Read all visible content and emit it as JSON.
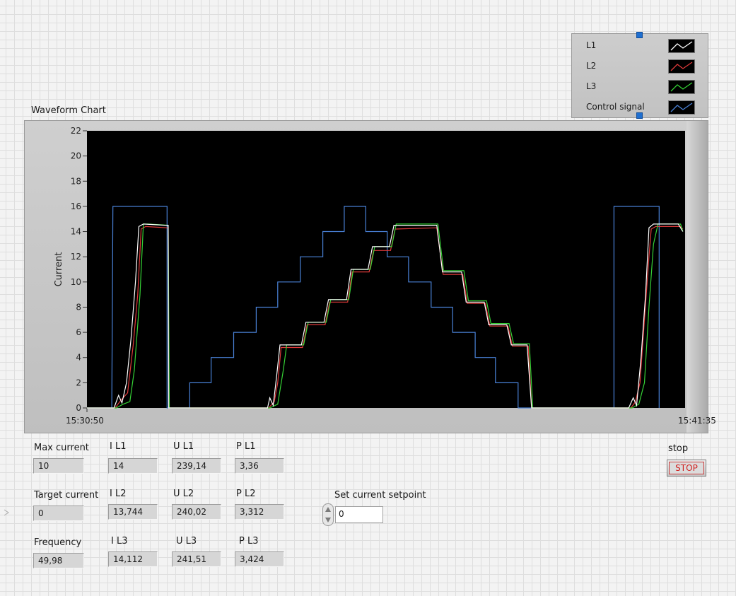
{
  "chart": {
    "title": "Waveform Chart",
    "ylabel": "Current",
    "x_start": "15:30:50",
    "x_end": "15:41:35",
    "y_ticks": [
      "0",
      "2",
      "4",
      "6",
      "8",
      "10",
      "12",
      "14",
      "16",
      "18",
      "20",
      "22"
    ]
  },
  "chart_data": {
    "type": "line",
    "title": "Waveform Chart",
    "xlabel": "",
    "ylabel": "Current",
    "xlim": [
      "15:30:50",
      "15:41:35"
    ],
    "ylim": [
      0,
      22
    ],
    "x_tick_labels": [
      "15:30:50",
      "15:41:35"
    ],
    "y_tick_labels": [
      "0",
      "2",
      "4",
      "6",
      "8",
      "10",
      "12",
      "14",
      "16",
      "18",
      "20",
      "22"
    ],
    "grid": false,
    "legend_position": "top-right",
    "series": [
      {
        "name": "L1",
        "color": "#ffffff",
        "points": [
          [
            0,
            0
          ],
          [
            1.2,
            0
          ],
          [
            1.4,
            1.0
          ],
          [
            1.55,
            0.4
          ],
          [
            1.75,
            2.0
          ],
          [
            1.95,
            5.5
          ],
          [
            2.15,
            10
          ],
          [
            2.3,
            14.4
          ],
          [
            2.5,
            14.6
          ],
          [
            3.45,
            14.5
          ],
          [
            3.6,
            14.5
          ],
          [
            3.62,
            0
          ],
          [
            8.0,
            0
          ],
          [
            8.1,
            0.8
          ],
          [
            8.25,
            0.2
          ],
          [
            8.4,
            2.5
          ],
          [
            8.55,
            5
          ],
          [
            9.5,
            5
          ],
          [
            9.7,
            6.8
          ],
          [
            10.5,
            6.8
          ],
          [
            10.7,
            8.6
          ],
          [
            11.5,
            8.6
          ],
          [
            11.7,
            11
          ],
          [
            12.45,
            11
          ],
          [
            12.65,
            12.8
          ],
          [
            13.4,
            12.8
          ],
          [
            13.6,
            14.5
          ],
          [
            15.5,
            14.5
          ],
          [
            15.75,
            10.8
          ],
          [
            16.6,
            10.8
          ],
          [
            16.8,
            8.4
          ],
          [
            17.6,
            8.4
          ],
          [
            17.8,
            6.6
          ],
          [
            18.6,
            6.6
          ],
          [
            18.8,
            5
          ],
          [
            19.5,
            5
          ],
          [
            19.7,
            0
          ],
          [
            24.0,
            0
          ],
          [
            24.2,
            0.8
          ],
          [
            24.35,
            0.2
          ],
          [
            24.55,
            4
          ],
          [
            24.75,
            9
          ],
          [
            24.9,
            14.3
          ],
          [
            25.1,
            14.6
          ],
          [
            26.2,
            14.6
          ],
          [
            26.4,
            14
          ]
        ]
      },
      {
        "name": "L2",
        "color": "#e03a3a",
        "points": [
          [
            0,
            0
          ],
          [
            1.25,
            0
          ],
          [
            1.5,
            0.6
          ],
          [
            1.8,
            1.2
          ],
          [
            2.05,
            5
          ],
          [
            2.25,
            9
          ],
          [
            2.4,
            14.2
          ],
          [
            2.6,
            14.4
          ],
          [
            3.55,
            14.3
          ],
          [
            3.6,
            14.3
          ],
          [
            3.63,
            0
          ],
          [
            8.05,
            0
          ],
          [
            8.3,
            0.5
          ],
          [
            8.45,
            2
          ],
          [
            8.6,
            4.8
          ],
          [
            9.55,
            4.8
          ],
          [
            9.75,
            6.6
          ],
          [
            10.55,
            6.6
          ],
          [
            10.75,
            8.4
          ],
          [
            11.55,
            8.4
          ],
          [
            11.75,
            10.8
          ],
          [
            12.5,
            10.8
          ],
          [
            12.7,
            12.5
          ],
          [
            13.45,
            12.5
          ],
          [
            13.65,
            14.2
          ],
          [
            15.5,
            14.3
          ],
          [
            15.78,
            10.6
          ],
          [
            16.65,
            10.6
          ],
          [
            16.85,
            8.3
          ],
          [
            17.65,
            8.3
          ],
          [
            17.85,
            6.5
          ],
          [
            18.65,
            6.5
          ],
          [
            18.85,
            4.9
          ],
          [
            19.55,
            4.9
          ],
          [
            19.7,
            0
          ],
          [
            24.1,
            0
          ],
          [
            24.3,
            0.5
          ],
          [
            24.5,
            2
          ],
          [
            24.7,
            7
          ],
          [
            24.9,
            12
          ],
          [
            25.0,
            14.2
          ],
          [
            25.2,
            14.4
          ],
          [
            26.3,
            14.4
          ],
          [
            26.4,
            14.2
          ]
        ]
      },
      {
        "name": "L3",
        "color": "#35d135",
        "points": [
          [
            0,
            0
          ],
          [
            1.3,
            0
          ],
          [
            1.6,
            0.3
          ],
          [
            1.9,
            0.5
          ],
          [
            2.1,
            3
          ],
          [
            2.35,
            9
          ],
          [
            2.5,
            14.6
          ],
          [
            2.7,
            14.6
          ],
          [
            3.6,
            14.5
          ],
          [
            3.65,
            0
          ],
          [
            8.1,
            0
          ],
          [
            8.45,
            0.3
          ],
          [
            8.7,
            3
          ],
          [
            8.85,
            5
          ],
          [
            9.6,
            5
          ],
          [
            9.8,
            6.8
          ],
          [
            10.6,
            6.8
          ],
          [
            10.8,
            8.6
          ],
          [
            11.6,
            8.6
          ],
          [
            11.8,
            11
          ],
          [
            12.55,
            11
          ],
          [
            12.75,
            12.8
          ],
          [
            13.5,
            12.8
          ],
          [
            13.7,
            14.6
          ],
          [
            15.55,
            14.6
          ],
          [
            15.8,
            10.9
          ],
          [
            16.7,
            10.9
          ],
          [
            16.9,
            8.5
          ],
          [
            17.7,
            8.5
          ],
          [
            17.9,
            6.7
          ],
          [
            18.7,
            6.7
          ],
          [
            18.9,
            5.1
          ],
          [
            19.6,
            5.1
          ],
          [
            19.75,
            0
          ],
          [
            24.15,
            0
          ],
          [
            24.45,
            0.3
          ],
          [
            24.7,
            2
          ],
          [
            24.9,
            8
          ],
          [
            25.1,
            13
          ],
          [
            25.3,
            14.6
          ],
          [
            26.3,
            14.6
          ],
          [
            26.4,
            14
          ]
        ]
      },
      {
        "name": "Control signal",
        "color": "#4a82d8",
        "points": [
          [
            0,
            0
          ],
          [
            1.1,
            0
          ],
          [
            1.15,
            16
          ],
          [
            3.55,
            16
          ],
          [
            3.55,
            0
          ],
          [
            4.55,
            0
          ],
          [
            4.55,
            2
          ],
          [
            5.5,
            2
          ],
          [
            5.5,
            4
          ],
          [
            6.5,
            4
          ],
          [
            6.5,
            6
          ],
          [
            7.5,
            6
          ],
          [
            7.5,
            8
          ],
          [
            8.45,
            8
          ],
          [
            8.45,
            10
          ],
          [
            9.45,
            10
          ],
          [
            9.45,
            12
          ],
          [
            10.45,
            12
          ],
          [
            10.45,
            14
          ],
          [
            11.4,
            14
          ],
          [
            11.4,
            16
          ],
          [
            12.35,
            16
          ],
          [
            12.35,
            14
          ],
          [
            13.3,
            14
          ],
          [
            13.3,
            12
          ],
          [
            14.25,
            12
          ],
          [
            14.25,
            10
          ],
          [
            15.25,
            10
          ],
          [
            15.25,
            8
          ],
          [
            16.2,
            8
          ],
          [
            16.2,
            6
          ],
          [
            17.2,
            6
          ],
          [
            17.2,
            4
          ],
          [
            18.1,
            4
          ],
          [
            18.1,
            2
          ],
          [
            19.1,
            2
          ],
          [
            19.1,
            0
          ],
          [
            23.35,
            0
          ],
          [
            23.35,
            16
          ],
          [
            25.35,
            16
          ],
          [
            25.35,
            0
          ]
        ]
      }
    ]
  },
  "legend": [
    {
      "label": "L1",
      "color": "#ffffff"
    },
    {
      "label": "L2",
      "color": "#e03a3a"
    },
    {
      "label": "L3",
      "color": "#35d135"
    },
    {
      "label": "Control signal",
      "color": "#4a82d8"
    }
  ],
  "controls": {
    "max_current_label": "Max current",
    "max_current_value": "10",
    "target_current_label": "Target current",
    "target_current_value": "0",
    "frequency_label": "Frequency",
    "frequency_value": "49,98",
    "il1_label": "I L1",
    "il1_value": "14",
    "il2_label": "I L2",
    "il2_value": "13,744",
    "il3_label": "I L3",
    "il3_value": "14,112",
    "ul1_label": "U L1",
    "ul1_value": "239,14",
    "ul2_label": "U L2",
    "ul2_value": "240,02",
    "ul3_label": "U L3",
    "ul3_value": "241,51",
    "pl1_label": "P L1",
    "pl1_value": "3,36",
    "pl2_label": "P L2",
    "pl2_value": "3,312",
    "pl3_label": "P L3",
    "pl3_value": "3,424",
    "setpoint_label": "Set current setpoint",
    "setpoint_value": "0",
    "stop_label": "stop",
    "stop_button": "STOP"
  }
}
